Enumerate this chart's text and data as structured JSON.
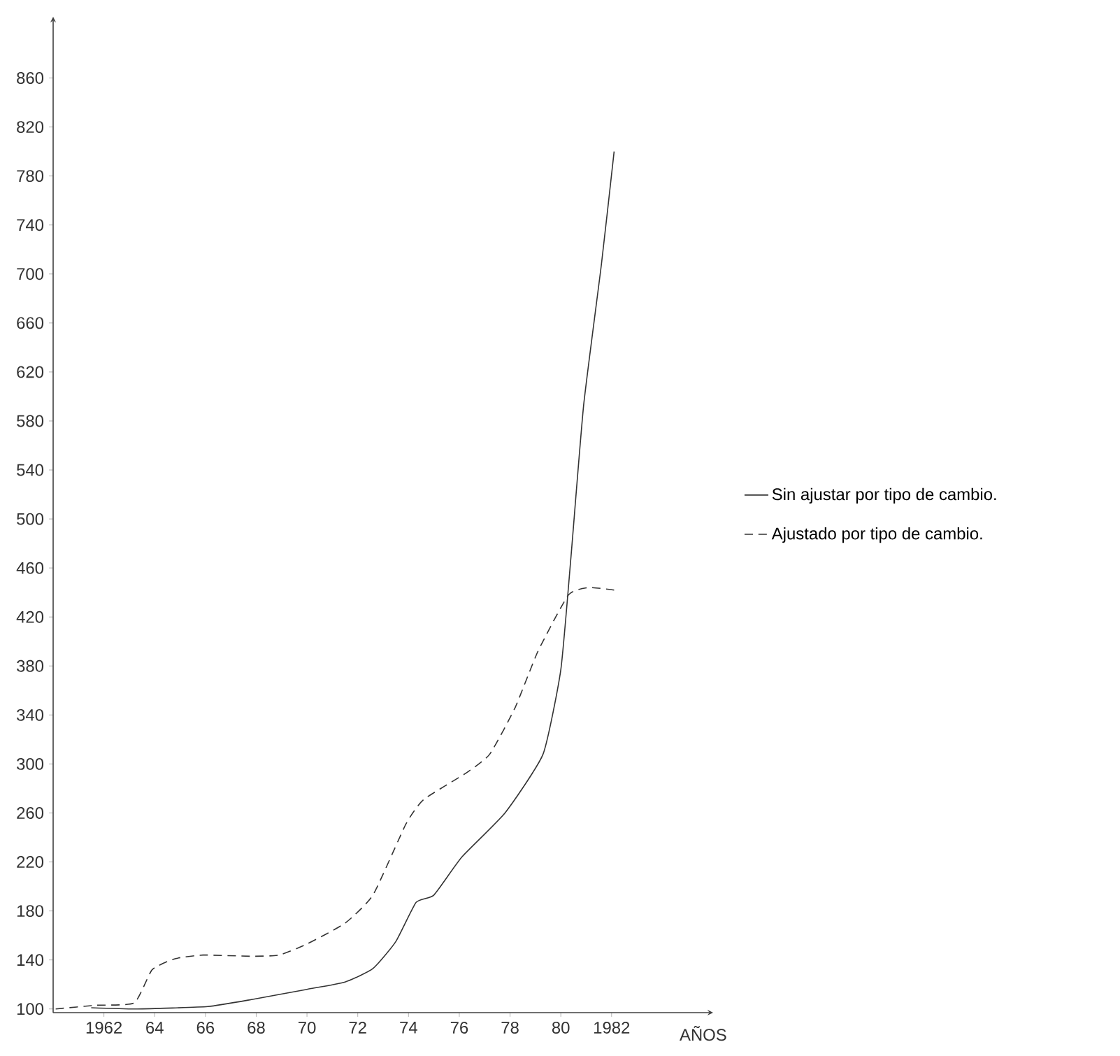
{
  "chart_data": {
    "type": "line",
    "xlabel": "AÑOS",
    "xlim": [
      1960,
      1986
    ],
    "ylim": [
      97,
      910
    ],
    "xticks": [
      {
        "value": 1962,
        "label": "1962"
      },
      {
        "value": 1964,
        "label": "64"
      },
      {
        "value": 1966,
        "label": "66"
      },
      {
        "value": 1968,
        "label": "68"
      },
      {
        "value": 1970,
        "label": "70"
      },
      {
        "value": 1972,
        "label": "72"
      },
      {
        "value": 1974,
        "label": "74"
      },
      {
        "value": 1976,
        "label": "76"
      },
      {
        "value": 1978,
        "label": "78"
      },
      {
        "value": 1980,
        "label": "80"
      },
      {
        "value": 1982,
        "label": "1982"
      }
    ],
    "yticks": [
      100,
      140,
      180,
      220,
      260,
      300,
      340,
      380,
      420,
      460,
      500,
      540,
      580,
      620,
      660,
      700,
      740,
      780,
      820,
      860
    ],
    "legend": "right",
    "grid": false,
    "series": [
      {
        "name": "Sin ajustar por tipo de cambio.",
        "color": "#333333",
        "line_style": "solid",
        "x": [
          1961.5,
          1963.3,
          1966.1,
          1967.9,
          1970.0,
          1971.5,
          1972.6,
          1973.5,
          1974.3,
          1975.0,
          1976.1,
          1977.8,
          1979.3,
          1980.0,
          1980.4,
          1980.9,
          1981.6,
          1982.1
        ],
        "values": [
          101,
          100,
          102,
          108,
          116,
          122,
          133,
          155,
          187,
          193,
          224,
          260,
          308,
          377,
          469,
          593,
          708,
          800
        ]
      },
      {
        "name": "Ajustado por tipo de cambio.",
        "color": "#333333",
        "line_style": "dashed",
        "x": [
          1960.1,
          1961.7,
          1963.2,
          1963.9,
          1964.8,
          1965.9,
          1967.8,
          1968.9,
          1970.0,
          1971.5,
          1972.6,
          1973.9,
          1974.6,
          1976.3,
          1977.2,
          1978.2,
          1979.1,
          1980.3,
          1981.1,
          1982.1
        ],
        "values": [
          100,
          103,
          105,
          132,
          141,
          144,
          143,
          144,
          153,
          170,
          193,
          251,
          271,
          293,
          308,
          346,
          392,
          438,
          444,
          442
        ]
      }
    ]
  }
}
